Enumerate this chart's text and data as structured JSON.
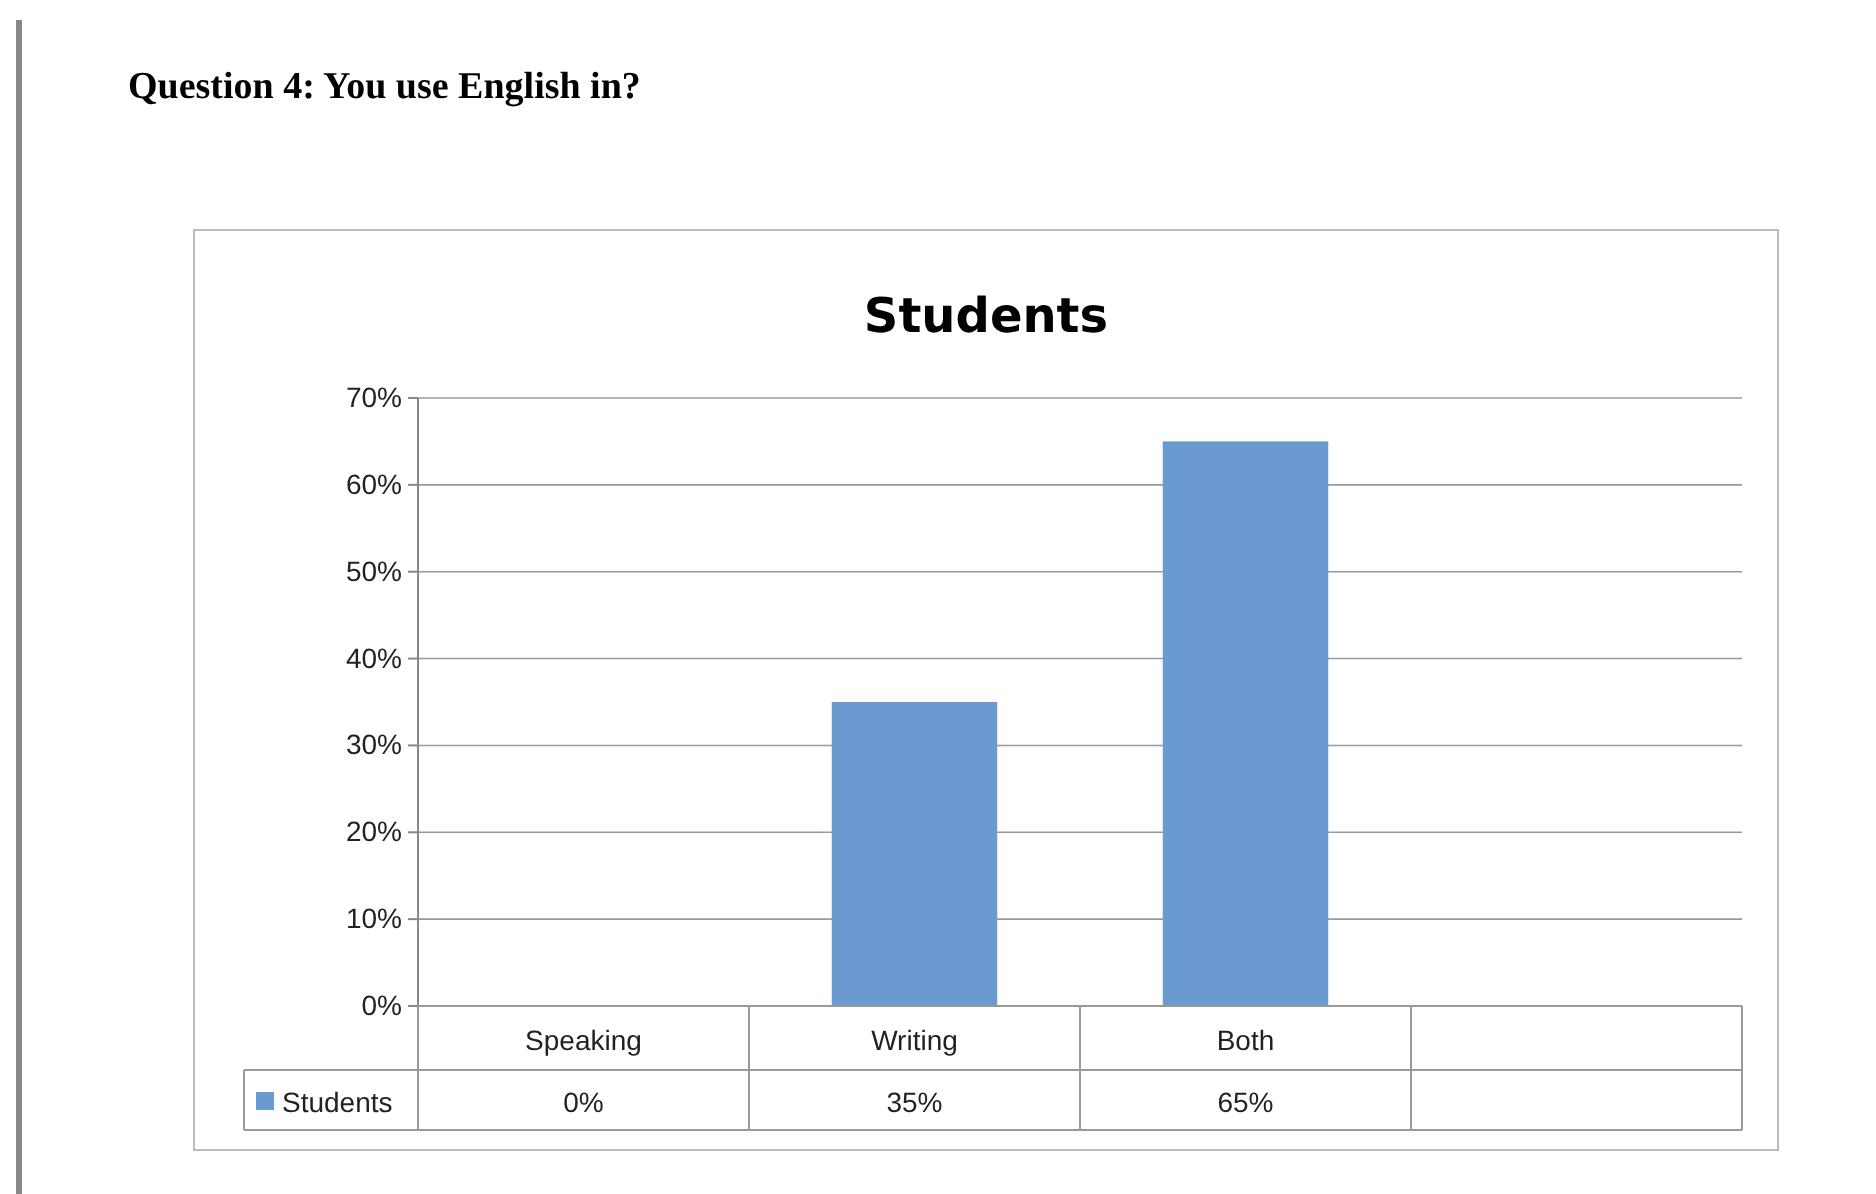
{
  "chart_data": {
    "type": "bar",
    "title": "Question 4: You use English in?",
    "subtitle": "Students",
    "categories": [
      "Speaking",
      "Writing",
      "Both",
      null
    ],
    "series": [
      {
        "name": "Students",
        "color": "#6a9ad0",
        "values": [
          0,
          35,
          65,
          null
        ],
        "value_labels": [
          "0%",
          "35%",
          "65%",
          null
        ]
      }
    ],
    "ylim": [
      0,
      70
    ],
    "yticks": [
      {
        "value": 0,
        "label": "0%"
      },
      {
        "value": 10,
        "label": "10%"
      },
      {
        "value": 20,
        "label": "20%"
      },
      {
        "value": 30,
        "label": "30%"
      },
      {
        "value": 40,
        "label": "40%"
      },
      {
        "value": 50,
        "label": "50%"
      },
      {
        "value": 60,
        "label": "60%"
      },
      {
        "value": 70,
        "label": "70%"
      }
    ],
    "grid": "y",
    "legend": "bottom"
  }
}
